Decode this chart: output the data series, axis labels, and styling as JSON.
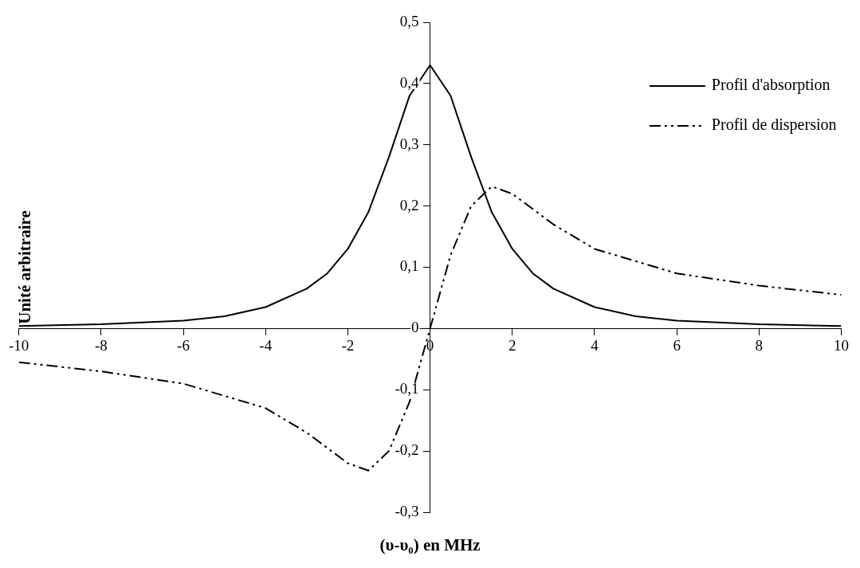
{
  "chart_data": {
    "type": "line",
    "xlabel": "(υ-υ₀) en MHz",
    "ylabel": "Unité arbitraire",
    "xlim": [
      -10,
      10
    ],
    "xticks": [
      -10,
      -8,
      -6,
      -4,
      -2,
      0,
      2,
      4,
      6,
      8,
      10
    ],
    "ylim": [
      -0.3,
      0.5
    ],
    "yticks": [
      {
        "value": -0.3,
        "label": "-0,3"
      },
      {
        "value": -0.2,
        "label": "-0,2"
      },
      {
        "value": -0.1,
        "label": "-0,1"
      },
      {
        "value": 0,
        "label": "0"
      },
      {
        "value": 0.1,
        "label": "0,1"
      },
      {
        "value": 0.2,
        "label": "0,2"
      },
      {
        "value": 0.3,
        "label": "0,3"
      },
      {
        "value": 0.4,
        "label": "0,4"
      },
      {
        "value": 0.5,
        "label": "0,5"
      }
    ],
    "grid": false,
    "legend": "right",
    "marker": "none",
    "series": [
      {
        "name": "Profil d'absorption",
        "color": "#000000",
        "line_style": "solid",
        "x": [
          -10,
          -8,
          -6,
          -5,
          -4,
          -3,
          -2.5,
          -2,
          -1.5,
          -1,
          -0.5,
          0,
          0.5,
          1,
          1.5,
          2,
          2.5,
          3,
          4,
          5,
          6,
          8,
          10
        ],
        "values": [
          0.004,
          0.007,
          0.013,
          0.02,
          0.035,
          0.065,
          0.09,
          0.13,
          0.19,
          0.28,
          0.38,
          0.43,
          0.38,
          0.28,
          0.19,
          0.13,
          0.09,
          0.065,
          0.035,
          0.02,
          0.013,
          0.007,
          0.004
        ]
      },
      {
        "name": "Profil de dispersion",
        "color": "#000000",
        "line_style": "dashed",
        "x": [
          -10,
          -8,
          -6,
          -4,
          -3,
          -2,
          -1.5,
          -1,
          -0.5,
          0,
          0.5,
          1,
          1.5,
          2,
          3,
          4,
          6,
          8,
          10
        ],
        "values": [
          -0.055,
          -0.07,
          -0.09,
          -0.13,
          -0.17,
          -0.22,
          -0.232,
          -0.2,
          -0.12,
          0,
          0.12,
          0.2,
          0.232,
          0.22,
          0.17,
          0.13,
          0.09,
          0.07,
          0.055
        ]
      }
    ]
  }
}
